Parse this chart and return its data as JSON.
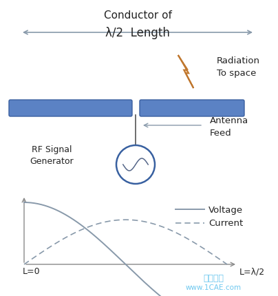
{
  "title_line1": "Conductor of",
  "title_line2": "λ/2  Length",
  "radiation_label_line1": "Radiation",
  "radiation_label_line2": "To space",
  "antenna_feed_label_line1": "Antenna",
  "antenna_feed_label_line2": "Feed",
  "rf_label_line1": "RF Signal",
  "rf_label_line2": "Generator",
  "voltage_label": "Voltage",
  "current_label": "Current",
  "xlabel_left": "L=0",
  "xlabel_right": "L=λ/2",
  "bar_color": "#5b82c4",
  "bar_dark": "#3a5fa0",
  "lightning_color": "#f5c89a",
  "lightning_outline": "#c07830",
  "graph_color": "#8899aa",
  "watermark_line1": "仿真在线",
  "watermark_line2": "www.1CAE.com",
  "background_color": "#ffffff",
  "arrow_color": "#8899aa"
}
